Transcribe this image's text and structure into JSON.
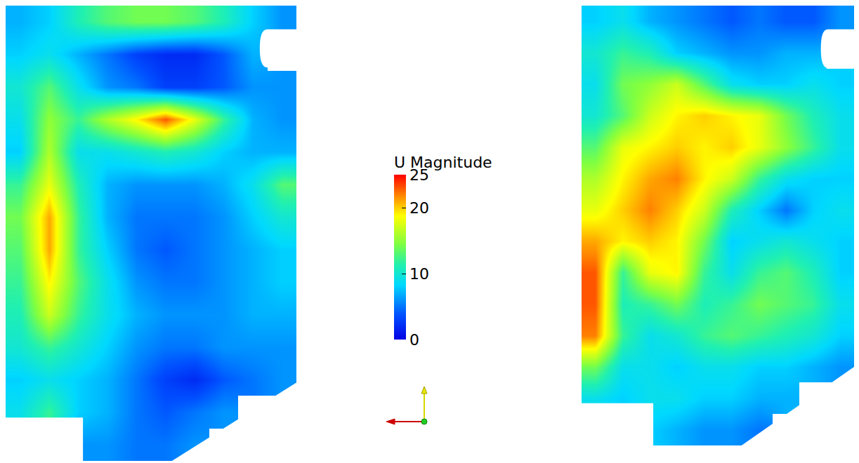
{
  "chart_data": {
    "type": "heatmap",
    "tick_labels": false,
    "colorbar": {
      "title": "U Magnitude",
      "range": [
        0,
        25
      ],
      "ticks": [
        0,
        10,
        20,
        25
      ]
    },
    "panels": [
      {
        "z": [
          [
            7,
            8,
            11,
            13,
            14,
            14,
            13,
            11,
            8,
            6
          ],
          [
            8,
            9,
            7,
            5,
            3,
            2,
            2,
            4,
            7,
            null
          ],
          [
            10,
            13,
            9,
            6,
            5,
            3,
            3,
            4,
            6,
            6
          ],
          [
            9,
            15,
            12,
            16,
            19,
            23,
            18,
            12,
            7,
            6
          ],
          [
            8,
            16,
            9,
            9,
            10,
            11,
            10,
            8,
            7,
            7
          ],
          [
            12,
            18,
            11,
            7,
            6,
            6,
            6,
            7,
            9,
            13
          ],
          [
            14,
            21,
            12,
            7,
            5,
            5,
            5,
            6,
            8,
            10
          ],
          [
            13,
            21,
            12,
            8,
            5,
            4,
            5,
            6,
            7,
            8
          ],
          [
            12,
            19,
            13,
            9,
            6,
            5,
            5,
            6,
            7,
            8
          ],
          [
            11,
            17,
            12,
            9,
            7,
            6,
            6,
            6,
            7,
            7
          ],
          [
            10,
            12,
            10,
            8,
            6,
            5,
            5,
            6,
            6,
            6
          ],
          [
            8,
            9,
            8,
            7,
            5,
            3,
            2,
            4,
            5,
            6
          ],
          [
            9,
            12,
            8,
            7,
            5,
            4,
            5,
            6,
            null,
            null
          ],
          [
            null,
            null,
            6,
            6,
            5,
            5,
            6,
            null,
            null,
            null
          ]
        ]
      },
      {
        "z": [
          [
            8,
            9,
            7,
            6,
            5,
            4,
            5,
            4,
            4,
            6
          ],
          [
            10,
            12,
            11,
            8,
            7,
            6,
            6,
            7,
            7,
            null
          ],
          [
            9,
            14,
            15,
            17,
            13,
            9,
            8,
            8,
            9,
            8
          ],
          [
            10,
            13,
            17,
            19,
            20,
            19,
            18,
            14,
            11,
            9
          ],
          [
            13,
            18,
            19,
            20,
            19,
            20,
            18,
            15,
            12,
            9
          ],
          [
            16,
            19,
            21,
            22,
            19,
            17,
            12,
            9,
            8,
            8
          ],
          [
            18,
            20,
            22,
            20,
            17,
            11,
            8,
            5,
            8,
            9
          ],
          [
            21,
            19,
            20,
            19,
            14,
            8,
            9,
            10,
            9,
            8
          ],
          [
            23,
            12,
            18,
            19,
            12,
            9,
            12,
            13,
            11,
            8
          ],
          [
            23,
            11,
            12,
            14,
            11,
            12,
            14,
            13,
            12,
            9
          ],
          [
            22,
            12,
            9,
            10,
            12,
            13,
            12,
            11,
            10,
            8
          ],
          [
            14,
            9,
            9,
            8,
            9,
            9,
            8,
            8,
            7,
            6
          ],
          [
            9,
            8,
            9,
            9,
            8,
            8,
            7,
            7,
            null,
            null
          ],
          [
            null,
            null,
            8,
            7,
            6,
            6,
            5,
            null,
            null,
            null
          ]
        ]
      }
    ]
  }
}
